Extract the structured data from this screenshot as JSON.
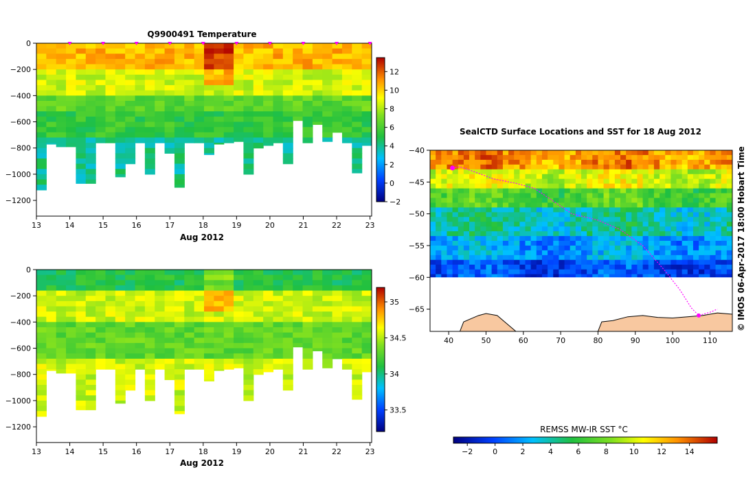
{
  "chart_data": [
    {
      "type": "heatmap",
      "id": "temperature",
      "title": "Q9900491  Temperature",
      "xlabel": "Aug 2012",
      "ylabel": "",
      "x_ticks": [
        13,
        14,
        15,
        16,
        17,
        18,
        19,
        20,
        21,
        22,
        23
      ],
      "xlim": [
        13,
        23.05
      ],
      "y_ticks": [
        0,
        -200,
        -400,
        -600,
        -800,
        -1000,
        -1200
      ],
      "ylim": [
        -1320,
        0
      ],
      "colorbar": {
        "ticks": [
          -2,
          0,
          2,
          4,
          6,
          8,
          10,
          12
        ],
        "range": [
          -2,
          13.5
        ]
      },
      "profile_markers_day": [
        14,
        15,
        16,
        17,
        18,
        19,
        20,
        21,
        22,
        23
      ],
      "profile_max_depth": [
        -1120,
        -770,
        -790,
        -790,
        -1070,
        -1070,
        -760,
        -760,
        -1020,
        -920,
        -760,
        -1000,
        -760,
        -840,
        -1100,
        -760,
        -760,
        -850,
        -770,
        -760,
        -750,
        -1000,
        -800,
        -780,
        -760,
        -920,
        -590,
        -760,
        -620,
        -750,
        -680,
        -760,
        -990,
        -780
      ],
      "layer_values": [
        {
          "depth": [
            0,
            -200
          ],
          "value": 10.5
        },
        {
          "depth": [
            -200,
            -400
          ],
          "value": 8.5
        },
        {
          "depth": [
            -400,
            -520
          ],
          "value": 6.5
        },
        {
          "depth": [
            -520,
            -700
          ],
          "value": 5.5
        },
        {
          "depth": [
            -700,
            -1200
          ],
          "value": 4.0
        }
      ]
    },
    {
      "type": "heatmap",
      "id": "salinity",
      "title": "",
      "xlabel": "Aug 2012",
      "ylabel": "",
      "x_ticks": [
        13,
        14,
        15,
        16,
        17,
        18,
        19,
        20,
        21,
        22,
        23
      ],
      "xlim": [
        13,
        23.05
      ],
      "y_ticks": [
        0,
        -200,
        -400,
        -600,
        -800,
        -1000,
        -1200
      ],
      "ylim": [
        -1320,
        0
      ],
      "colorbar": {
        "ticks": [
          33.5,
          34,
          34.5,
          35
        ],
        "range": [
          33.2,
          35.2
        ]
      },
      "profile_max_depth": [
        -1120,
        -770,
        -790,
        -790,
        -1070,
        -1070,
        -760,
        -760,
        -1020,
        -920,
        -760,
        -1000,
        -760,
        -840,
        -1100,
        -760,
        -760,
        -850,
        -770,
        -760,
        -750,
        -1000,
        -800,
        -780,
        -760,
        -920,
        -590,
        -760,
        -620,
        -750,
        -680,
        -760,
        -990,
        -780
      ],
      "layer_values": [
        {
          "depth": [
            0,
            -150
          ],
          "value": 34.1
        },
        {
          "depth": [
            -150,
            -400
          ],
          "value": 34.55
        },
        {
          "depth": [
            -400,
            -650
          ],
          "value": 34.3
        },
        {
          "depth": [
            -650,
            -1200
          ],
          "value": 34.55
        }
      ]
    },
    {
      "type": "heatmap",
      "id": "sst_map",
      "title": "SealCTD Surface Locations and SST for 18 Aug 2012",
      "xlabel": "",
      "ylabel": "",
      "x_ticks": [
        40,
        50,
        60,
        70,
        80,
        90,
        100,
        110
      ],
      "xlim": [
        35,
        116
      ],
      "y_ticks": [
        -40,
        -45,
        -50,
        -55,
        -60,
        -65
      ],
      "ylim": [
        -68.5,
        -40
      ],
      "sst_bands": [
        {
          "lat": [
            -40,
            -43
          ],
          "value": 13
        },
        {
          "lat": [
            -43,
            -46
          ],
          "value": 10
        },
        {
          "lat": [
            -46,
            -49
          ],
          "value": 7
        },
        {
          "lat": [
            -49,
            -53
          ],
          "value": 4
        },
        {
          "lat": [
            -53,
            -57
          ],
          "value": 2
        },
        {
          "lat": [
            -57,
            -60
          ],
          "value": 0
        }
      ],
      "track": [
        [
          41,
          -42.8
        ],
        [
          43,
          -42.6
        ],
        [
          46,
          -43.2
        ],
        [
          52,
          -44.5
        ],
        [
          58,
          -45.2
        ],
        [
          63,
          -46
        ],
        [
          68,
          -48
        ],
        [
          73,
          -50
        ],
        [
          80,
          -51
        ],
        [
          86,
          -52.5
        ],
        [
          92,
          -55
        ],
        [
          98,
          -59
        ],
        [
          102,
          -62
        ],
        [
          105,
          -64.8
        ],
        [
          107,
          -66
        ],
        [
          110,
          -65.5
        ],
        [
          112,
          -65
        ]
      ],
      "colorbar": {
        "label": "REMSS MW-IR SST °C",
        "ticks": [
          -2,
          0,
          2,
          4,
          6,
          8,
          10,
          12,
          14
        ],
        "range": [
          -3,
          16
        ]
      },
      "credit": "© IMOS 06-Apr-2017 18:00 Hobart Time"
    }
  ]
}
